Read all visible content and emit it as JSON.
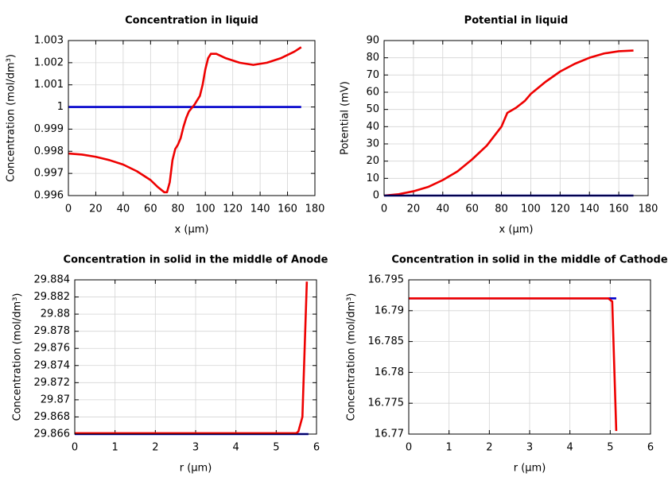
{
  "chart_data": [
    {
      "type": "line",
      "title": "Concentration in liquid",
      "xlabel": "x (µm)",
      "ylabel": "Concentration (mol/dm³)",
      "xlim": [
        0,
        180
      ],
      "ylim": [
        0.996,
        1.003
      ],
      "xticks": [
        0,
        20,
        40,
        60,
        80,
        100,
        120,
        140,
        160,
        180
      ],
      "yticks": [
        0.996,
        0.997,
        0.998,
        0.999,
        1,
        1.001,
        1.002,
        1.003
      ],
      "grid": true,
      "series": [
        {
          "color": "#0000cc",
          "x": [
            0,
            170
          ],
          "values": [
            1,
            1
          ]
        },
        {
          "color": "#ee0000",
          "x": [
            0,
            10,
            20,
            30,
            40,
            50,
            60,
            65,
            70,
            72,
            74,
            76,
            78,
            80,
            82,
            84,
            86,
            88,
            92,
            96,
            98,
            100,
            102,
            104,
            108,
            115,
            125,
            135,
            145,
            155,
            165,
            170
          ],
          "values": [
            0.9979,
            0.99785,
            0.99775,
            0.9976,
            0.9974,
            0.9971,
            0.9967,
            0.9964,
            0.99615,
            0.99615,
            0.9966,
            0.9976,
            0.9981,
            0.9983,
            0.9986,
            0.9991,
            0.9995,
            0.9998,
            1.0001,
            1.0005,
            1.001,
            1.0017,
            1.0022,
            1.0024,
            1.0024,
            1.0022,
            1.002,
            1.0019,
            1.002,
            1.0022,
            1.0025,
            1.0027
          ]
        }
      ]
    },
    {
      "type": "line",
      "title": "Potential in liquid",
      "xlabel": "x (µm)",
      "ylabel": "Potential (mV)",
      "xlim": [
        0,
        180
      ],
      "ylim": [
        0,
        90
      ],
      "xticks": [
        0,
        20,
        40,
        60,
        80,
        100,
        120,
        140,
        160,
        180
      ],
      "yticks": [
        0,
        10,
        20,
        30,
        40,
        50,
        60,
        70,
        80,
        90
      ],
      "grid": true,
      "series": [
        {
          "color": "#ee0000",
          "x": [
            0,
            10,
            20,
            30,
            40,
            50,
            60,
            70,
            80,
            84,
            90,
            96,
            100,
            110,
            120,
            130,
            140,
            150,
            160,
            170
          ],
          "values": [
            0,
            0.8,
            2.5,
            5,
            9,
            14,
            21,
            29,
            40,
            48,
            51,
            55,
            59,
            66,
            72,
            76.5,
            80,
            82.5,
            83.8,
            84.2
          ]
        },
        {
          "color": "#000099",
          "x": [
            0,
            170
          ],
          "values": [
            0,
            0
          ]
        }
      ]
    },
    {
      "type": "line",
      "title": "Concentration in solid in the middle of Anode",
      "xlabel": "r (µm)",
      "ylabel": "Concentration (mol/dm³)",
      "xlim": [
        0,
        6
      ],
      "ylim": [
        29.866,
        29.884
      ],
      "xticks": [
        0,
        1,
        2,
        3,
        4,
        5,
        6
      ],
      "yticks": [
        29.866,
        29.868,
        29.87,
        29.872,
        29.874,
        29.876,
        29.878,
        29.88,
        29.882,
        29.884
      ],
      "grid": true,
      "series": [
        {
          "color": "#0000cc",
          "x": [
            0,
            5.8
          ],
          "values": [
            29.866,
            29.866
          ]
        },
        {
          "color": "#ee0000",
          "x": [
            0,
            5,
            5.5,
            5.55,
            5.65,
            5.76
          ],
          "values": [
            29.8661,
            29.8661,
            29.8661,
            29.8663,
            29.868,
            29.8838
          ]
        }
      ]
    },
    {
      "type": "line",
      "title": "Concentration in solid in the middle of Cathode",
      "xlabel": "r (µm)",
      "ylabel": "Concentration (mol/dm³)",
      "xlim": [
        0,
        6
      ],
      "ylim": [
        16.77,
        16.795
      ],
      "xticks": [
        0,
        1,
        2,
        3,
        4,
        5,
        6
      ],
      "yticks": [
        16.77,
        16.775,
        16.78,
        16.785,
        16.79,
        16.795
      ],
      "grid": true,
      "series": [
        {
          "color": "#0000cc",
          "x": [
            0,
            5.15
          ],
          "values": [
            16.792,
            16.792
          ]
        },
        {
          "color": "#ee0000",
          "x": [
            0,
            4.95,
            5.05,
            5.15
          ],
          "values": [
            16.792,
            16.792,
            16.7915,
            16.7705
          ]
        }
      ]
    }
  ]
}
